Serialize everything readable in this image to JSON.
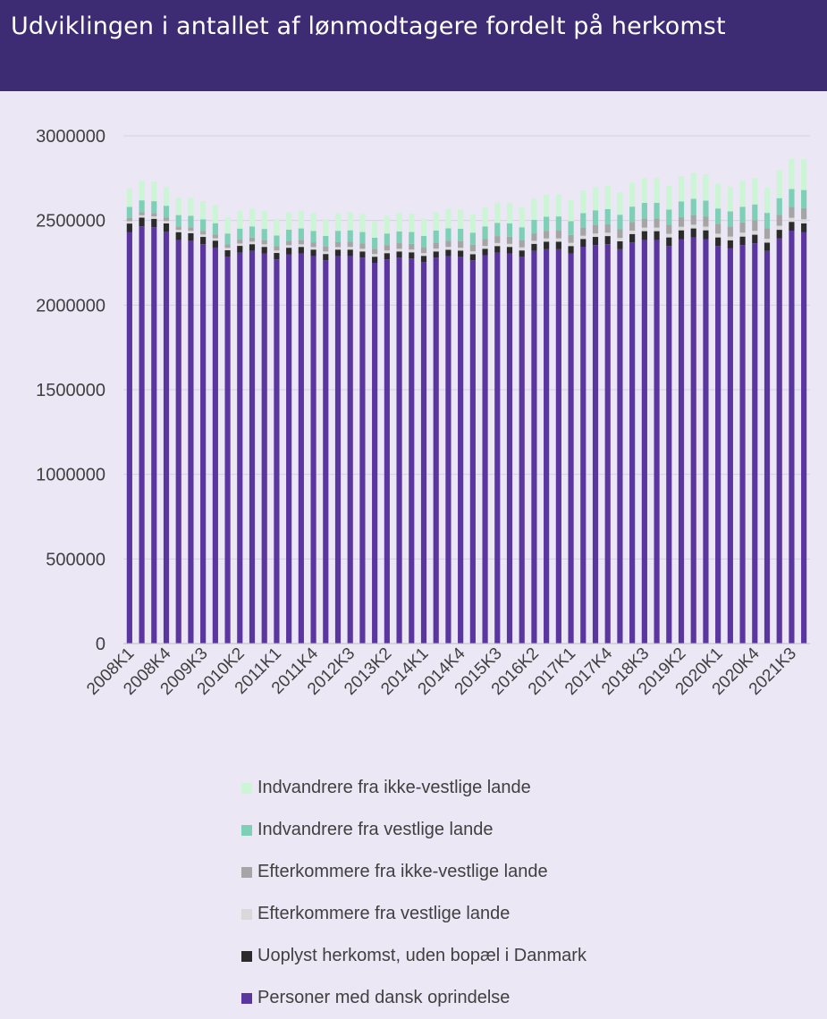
{
  "header": {
    "title": "Udviklingen i antallet af lønmodtagere fordelt på herkomst"
  },
  "chart_data": {
    "type": "bar",
    "stacked": true,
    "title": "Udviklingen i antallet af lønmodtagere fordelt på herkomst",
    "xlabel": "",
    "ylabel": "",
    "ylim": [
      0,
      3000000
    ],
    "yticks": [
      0,
      500000,
      1000000,
      1500000,
      2000000,
      2500000,
      3000000
    ],
    "ytick_labels": [
      "0",
      "500000",
      "1000000",
      "1500000",
      "2000000",
      "2500000",
      "3000000"
    ],
    "grid": true,
    "legend_position": "bottom",
    "categories": [
      "2008K1",
      "2008K2",
      "2008K3",
      "2008K4",
      "2009K1",
      "2009K2",
      "2009K3",
      "2009K4",
      "2010K1",
      "2010K2",
      "2010K3",
      "2010K4",
      "2011K1",
      "2011K2",
      "2011K3",
      "2011K4",
      "2012K1",
      "2012K2",
      "2012K3",
      "2012K4",
      "2013K1",
      "2013K2",
      "2013K3",
      "2013K4",
      "2014K1",
      "2014K2",
      "2014K3",
      "2014K4",
      "2015K1",
      "2015K2",
      "2015K3",
      "2015K4",
      "2016K1",
      "2016K2",
      "2016K3",
      "2016K4",
      "2017K1",
      "2017K2",
      "2017K3",
      "2017K4",
      "2018K1",
      "2018K2",
      "2018K3",
      "2018K4",
      "2019K1",
      "2019K2",
      "2019K3",
      "2019K4",
      "2020K1",
      "2020K2",
      "2020K3",
      "2020K4",
      "2021K1",
      "2021K2",
      "2021K3",
      "2021K4"
    ],
    "tick_labels_shown": [
      "2008K1",
      "2008K4",
      "2009K3",
      "2010K2",
      "2011K1",
      "2011K4",
      "2012K3",
      "2013K2",
      "2014K1",
      "2014K4",
      "2015K3",
      "2016K2",
      "2017K1",
      "2017K4",
      "2018K3",
      "2019K2",
      "2020K1",
      "2020K4",
      "2021K3"
    ],
    "series": [
      {
        "name": "Personer med dansk oprindelse",
        "color": "#5b35a0",
        "values": [
          2430000,
          2465000,
          2460000,
          2435000,
          2385000,
          2380000,
          2360000,
          2340000,
          2285000,
          2310000,
          2320000,
          2305000,
          2270000,
          2300000,
          2305000,
          2290000,
          2265000,
          2290000,
          2290000,
          2280000,
          2250000,
          2270000,
          2280000,
          2275000,
          2255000,
          2280000,
          2290000,
          2285000,
          2265000,
          2295000,
          2310000,
          2305000,
          2285000,
          2320000,
          2330000,
          2330000,
          2305000,
          2345000,
          2355000,
          2360000,
          2330000,
          2370000,
          2385000,
          2385000,
          2350000,
          2390000,
          2400000,
          2390000,
          2350000,
          2335000,
          2355000,
          2365000,
          2320000,
          2395000,
          2440000,
          2430000
        ]
      },
      {
        "name": "Uoplyst herkomst, uden bopæl i Danmark",
        "color": "#2b2b2b",
        "values": [
          52000,
          52000,
          50000,
          48000,
          46000,
          45000,
          43000,
          41000,
          39000,
          40000,
          40000,
          39000,
          38000,
          39000,
          39000,
          38000,
          37000,
          38000,
          38000,
          37000,
          36000,
          37000,
          37000,
          37000,
          36000,
          37000,
          37000,
          37000,
          36000,
          38000,
          39000,
          39000,
          38000,
          42000,
          45000,
          45000,
          44000,
          46000,
          48000,
          48000,
          47000,
          50000,
          52000,
          52000,
          50000,
          52000,
          53000,
          52000,
          50000,
          48000,
          50000,
          51000,
          49000,
          50000,
          52000,
          53000
        ]
      },
      {
        "name": "Efterkommere fra vestlige lande",
        "color": "#d9d9d9",
        "values": [
          14000,
          14000,
          14000,
          14000,
          14000,
          14000,
          14000,
          14000,
          14000,
          14000,
          15000,
          15000,
          15000,
          15000,
          15000,
          15000,
          15000,
          15000,
          16000,
          16000,
          16000,
          16000,
          16000,
          16000,
          16000,
          17000,
          17000,
          17000,
          17000,
          17000,
          18000,
          18000,
          18000,
          18000,
          19000,
          19000,
          19000,
          19000,
          20000,
          20000,
          20000,
          20000,
          21000,
          21000,
          21000,
          21000,
          22000,
          22000,
          22000,
          22000,
          23000,
          23000,
          23000,
          24000,
          24000,
          24000
        ]
      },
      {
        "name": "Efterkommere fra ikke-vestlige lande",
        "color": "#a5a5a5",
        "values": [
          18000,
          19000,
          20000,
          20000,
          20000,
          21000,
          22000,
          22000,
          22000,
          23000,
          24000,
          25000,
          25000,
          26000,
          27000,
          28000,
          28000,
          29000,
          30000,
          31000,
          31000,
          32000,
          33000,
          34000,
          35000,
          36000,
          37000,
          38000,
          39000,
          40000,
          41000,
          42000,
          43000,
          44000,
          45000,
          46000,
          47000,
          48000,
          49000,
          50000,
          51000,
          52000,
          53000,
          54000,
          55000,
          56000,
          57000,
          58000,
          59000,
          60000,
          61000,
          62000,
          63000,
          64000,
          65000,
          66000
        ]
      },
      {
        "name": "Indvandrere fra vestlige lande",
        "color": "#7dcfb6",
        "values": [
          66000,
          69000,
          70000,
          70000,
          67000,
          68000,
          68000,
          67000,
          63000,
          65000,
          66000,
          66000,
          63000,
          66000,
          67000,
          67000,
          64000,
          67000,
          68000,
          68000,
          65000,
          68000,
          70000,
          70000,
          67000,
          71000,
          73000,
          74000,
          71000,
          75000,
          78000,
          79000,
          76000,
          80000,
          83000,
          84000,
          81000,
          86000,
          88000,
          89000,
          86000,
          90000,
          93000,
          93000,
          89000,
          94000,
          96000,
          95000,
          90000,
          89000,
          92000,
          94000,
          90000,
          99000,
          105000,
          107000
        ]
      },
      {
        "name": "Indvandrere fra ikke-vestlige lande",
        "color": "#ccf5d5",
        "values": [
          110000,
          115000,
          115000,
          112000,
          104000,
          107000,
          107000,
          106000,
          98000,
          103000,
          105000,
          105000,
          98000,
          103000,
          106000,
          106000,
          99000,
          104000,
          107000,
          107000,
          100000,
          105000,
          108000,
          109000,
          102000,
          108000,
          112000,
          114000,
          108000,
          115000,
          120000,
          122000,
          116000,
          124000,
          130000,
          132000,
          125000,
          133000,
          138000,
          140000,
          133000,
          141000,
          147000,
          148000,
          140000,
          149000,
          155000,
          155000,
          146000,
          146000,
          153000,
          156000,
          148000,
          165000,
          178000,
          182000
        ]
      }
    ]
  }
}
